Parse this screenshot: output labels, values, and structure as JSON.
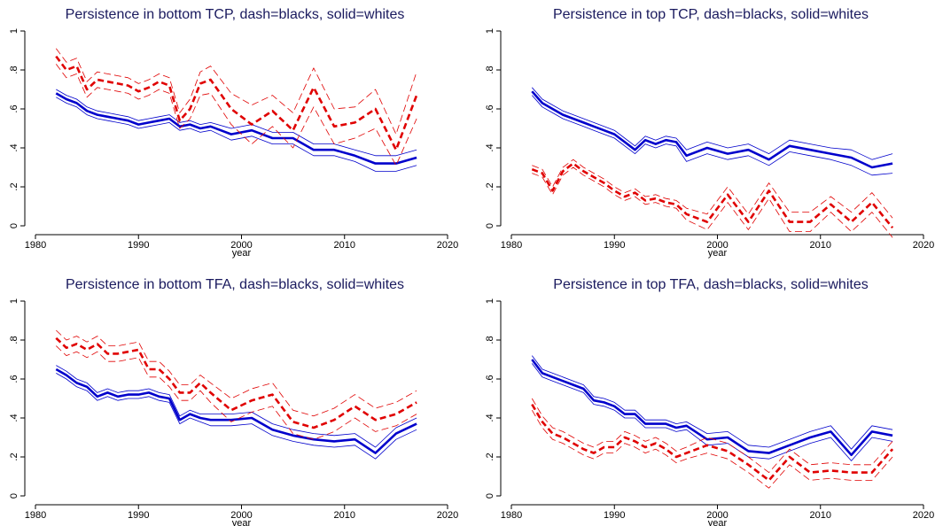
{
  "chart_data": [
    {
      "type": "line",
      "title": "Persistence in bottom TCP, dash=blacks, solid=whites",
      "x_label": "year",
      "x": [
        1982,
        1983,
        1984,
        1985,
        1986,
        1987,
        1988,
        1989,
        1990,
        1991,
        1992,
        1993,
        1994,
        1995,
        1996,
        1997,
        1999,
        2001,
        2003,
        2005,
        2007,
        2009,
        2011,
        2013,
        2015,
        2017
      ],
      "xlim": [
        1980,
        2020
      ],
      "xticks": [
        1980,
        1990,
        2000,
        2010,
        2020
      ],
      "ylim": [
        0,
        1
      ],
      "yticks": [
        0,
        {
          "value": 0.2,
          "label": ".2"
        },
        {
          "value": 0.4,
          "label": ".4"
        },
        {
          "value": 0.6,
          "label": ".6"
        },
        {
          "value": 0.8,
          "label": ".8"
        },
        1
      ],
      "series": [
        {
          "color": "#0000cc",
          "dash": false,
          "values": [
            0.68,
            0.65,
            0.63,
            0.59,
            0.57,
            0.56,
            0.55,
            0.54,
            0.52,
            0.53,
            0.54,
            0.55,
            0.51,
            0.52,
            0.5,
            0.51,
            0.47,
            0.49,
            0.45,
            0.45,
            0.39,
            0.39,
            0.36,
            0.32,
            0.32,
            0.35
          ],
          "lower": [
            0.66,
            0.63,
            0.61,
            0.57,
            0.55,
            0.54,
            0.53,
            0.52,
            0.5,
            0.51,
            0.52,
            0.53,
            0.49,
            0.5,
            0.48,
            0.49,
            0.44,
            0.46,
            0.42,
            0.42,
            0.36,
            0.36,
            0.33,
            0.28,
            0.28,
            0.31
          ],
          "upper": [
            0.7,
            0.67,
            0.65,
            0.61,
            0.59,
            0.58,
            0.57,
            0.56,
            0.54,
            0.55,
            0.56,
            0.57,
            0.53,
            0.54,
            0.52,
            0.53,
            0.5,
            0.52,
            0.48,
            0.48,
            0.42,
            0.42,
            0.39,
            0.36,
            0.36,
            0.39
          ]
        },
        {
          "color": "#e00000",
          "dash": true,
          "values": [
            0.87,
            0.8,
            0.82,
            0.7,
            0.75,
            0.74,
            0.73,
            0.72,
            0.69,
            0.71,
            0.74,
            0.72,
            0.54,
            0.6,
            0.73,
            0.75,
            0.6,
            0.52,
            0.59,
            0.49,
            0.71,
            0.51,
            0.53,
            0.6,
            0.39,
            0.67
          ],
          "lower": [
            0.83,
            0.76,
            0.78,
            0.66,
            0.71,
            0.7,
            0.69,
            0.68,
            0.65,
            0.67,
            0.7,
            0.68,
            0.5,
            0.55,
            0.67,
            0.68,
            0.52,
            0.42,
            0.51,
            0.4,
            0.61,
            0.42,
            0.45,
            0.5,
            0.31,
            0.55
          ],
          "upper": [
            0.91,
            0.84,
            0.86,
            0.74,
            0.79,
            0.78,
            0.77,
            0.76,
            0.73,
            0.75,
            0.78,
            0.76,
            0.58,
            0.65,
            0.79,
            0.82,
            0.68,
            0.62,
            0.67,
            0.58,
            0.81,
            0.6,
            0.61,
            0.7,
            0.47,
            0.79
          ]
        }
      ]
    },
    {
      "type": "line",
      "title": "Persistence in top TCP, dash=blacks, solid=whites",
      "x_label": "year",
      "x": [
        1982,
        1983,
        1984,
        1985,
        1986,
        1987,
        1988,
        1989,
        1990,
        1991,
        1992,
        1993,
        1994,
        1995,
        1996,
        1997,
        1999,
        2001,
        2003,
        2005,
        2007,
        2009,
        2011,
        2013,
        2015,
        2017
      ],
      "xlim": [
        1980,
        2020
      ],
      "xticks": [
        1980,
        1990,
        2000,
        2010,
        2020
      ],
      "ylim": [
        0,
        1
      ],
      "yticks": [
        0,
        {
          "value": 0.2,
          "label": ".2"
        },
        {
          "value": 0.4,
          "label": ".4"
        },
        {
          "value": 0.6,
          "label": ".6"
        },
        {
          "value": 0.8,
          "label": ".8"
        },
        1
      ],
      "series": [
        {
          "color": "#0000cc",
          "dash": false,
          "values": [
            0.69,
            0.63,
            0.6,
            0.57,
            0.55,
            0.53,
            0.51,
            0.49,
            0.47,
            0.43,
            0.39,
            0.44,
            0.42,
            0.44,
            0.43,
            0.36,
            0.4,
            0.37,
            0.39,
            0.34,
            0.41,
            0.39,
            0.37,
            0.35,
            0.3,
            0.32
          ],
          "lower": [
            0.67,
            0.61,
            0.58,
            0.55,
            0.53,
            0.51,
            0.49,
            0.47,
            0.45,
            0.41,
            0.37,
            0.42,
            0.4,
            0.42,
            0.41,
            0.33,
            0.37,
            0.34,
            0.36,
            0.31,
            0.38,
            0.36,
            0.34,
            0.31,
            0.26,
            0.27
          ],
          "upper": [
            0.71,
            0.65,
            0.62,
            0.59,
            0.57,
            0.55,
            0.53,
            0.51,
            0.49,
            0.45,
            0.41,
            0.46,
            0.44,
            0.46,
            0.45,
            0.39,
            0.43,
            0.4,
            0.42,
            0.37,
            0.44,
            0.42,
            0.4,
            0.39,
            0.34,
            0.37
          ]
        },
        {
          "color": "#e00000",
          "dash": true,
          "values": [
            0.29,
            0.27,
            0.18,
            0.28,
            0.32,
            0.28,
            0.25,
            0.22,
            0.18,
            0.15,
            0.17,
            0.13,
            0.14,
            0.12,
            0.11,
            0.06,
            0.02,
            0.16,
            0.02,
            0.18,
            0.02,
            0.02,
            0.11,
            0.02,
            0.12,
            -0.01
          ],
          "lower": [
            0.27,
            0.25,
            0.16,
            0.26,
            0.3,
            0.26,
            0.23,
            0.2,
            0.16,
            0.13,
            0.15,
            0.11,
            0.12,
            0.1,
            0.09,
            0.03,
            -0.02,
            0.12,
            -0.02,
            0.14,
            -0.03,
            -0.03,
            0.07,
            -0.03,
            0.07,
            -0.06
          ],
          "upper": [
            0.31,
            0.29,
            0.2,
            0.3,
            0.34,
            0.3,
            0.27,
            0.24,
            0.2,
            0.17,
            0.19,
            0.15,
            0.16,
            0.14,
            0.13,
            0.09,
            0.06,
            0.2,
            0.06,
            0.22,
            0.07,
            0.07,
            0.15,
            0.07,
            0.17,
            0.04
          ]
        }
      ]
    },
    {
      "type": "line",
      "title": "Persistence in bottom TFA, dash=blacks, solid=whites",
      "x_label": "year",
      "x": [
        1982,
        1983,
        1984,
        1985,
        1986,
        1987,
        1988,
        1989,
        1990,
        1991,
        1992,
        1993,
        1994,
        1995,
        1996,
        1997,
        1999,
        2001,
        2003,
        2005,
        2007,
        2009,
        2011,
        2013,
        2015,
        2017
      ],
      "xlim": [
        1980,
        2020
      ],
      "xticks": [
        1980,
        1990,
        2000,
        2010,
        2020
      ],
      "ylim": [
        0,
        1
      ],
      "yticks": [
        0,
        {
          "value": 0.2,
          "label": ".2"
        },
        {
          "value": 0.4,
          "label": ".4"
        },
        {
          "value": 0.6,
          "label": ".6"
        },
        {
          "value": 0.8,
          "label": ".8"
        },
        1
      ],
      "series": [
        {
          "color": "#0000cc",
          "dash": false,
          "values": [
            0.65,
            0.62,
            0.58,
            0.56,
            0.51,
            0.53,
            0.51,
            0.52,
            0.52,
            0.53,
            0.51,
            0.5,
            0.39,
            0.42,
            0.4,
            0.39,
            0.39,
            0.4,
            0.34,
            0.31,
            0.29,
            0.28,
            0.29,
            0.22,
            0.32,
            0.37
          ],
          "lower": [
            0.63,
            0.6,
            0.56,
            0.54,
            0.49,
            0.51,
            0.49,
            0.5,
            0.5,
            0.51,
            0.49,
            0.48,
            0.37,
            0.4,
            0.38,
            0.36,
            0.36,
            0.37,
            0.31,
            0.28,
            0.26,
            0.25,
            0.26,
            0.19,
            0.29,
            0.34
          ],
          "upper": [
            0.67,
            0.64,
            0.6,
            0.58,
            0.53,
            0.55,
            0.53,
            0.54,
            0.54,
            0.55,
            0.53,
            0.52,
            0.41,
            0.44,
            0.42,
            0.42,
            0.42,
            0.43,
            0.37,
            0.34,
            0.32,
            0.31,
            0.32,
            0.25,
            0.35,
            0.4
          ]
        },
        {
          "color": "#e00000",
          "dash": true,
          "values": [
            0.81,
            0.76,
            0.78,
            0.75,
            0.78,
            0.73,
            0.73,
            0.74,
            0.75,
            0.65,
            0.65,
            0.6,
            0.53,
            0.53,
            0.58,
            0.53,
            0.44,
            0.49,
            0.52,
            0.38,
            0.35,
            0.39,
            0.46,
            0.39,
            0.42,
            0.48
          ],
          "lower": [
            0.77,
            0.72,
            0.74,
            0.71,
            0.74,
            0.69,
            0.69,
            0.7,
            0.71,
            0.61,
            0.61,
            0.56,
            0.49,
            0.49,
            0.54,
            0.48,
            0.38,
            0.43,
            0.46,
            0.32,
            0.29,
            0.33,
            0.4,
            0.33,
            0.36,
            0.42
          ],
          "upper": [
            0.85,
            0.8,
            0.82,
            0.79,
            0.82,
            0.77,
            0.77,
            0.78,
            0.79,
            0.69,
            0.69,
            0.64,
            0.57,
            0.57,
            0.62,
            0.58,
            0.5,
            0.55,
            0.58,
            0.44,
            0.41,
            0.45,
            0.52,
            0.45,
            0.48,
            0.54
          ]
        }
      ]
    },
    {
      "type": "line",
      "title": "Persistence in top TFA, dash=blacks, solid=whites",
      "x_label": "year",
      "x": [
        1982,
        1983,
        1984,
        1985,
        1986,
        1987,
        1988,
        1989,
        1990,
        1991,
        1992,
        1993,
        1994,
        1995,
        1996,
        1997,
        1999,
        2001,
        2003,
        2005,
        2007,
        2009,
        2011,
        2013,
        2015,
        2017
      ],
      "xlim": [
        1980,
        2020
      ],
      "xticks": [
        1980,
        1990,
        2000,
        2010,
        2020
      ],
      "ylim": [
        0,
        1
      ],
      "yticks": [
        0,
        {
          "value": 0.2,
          "label": ".2"
        },
        {
          "value": 0.4,
          "label": ".4"
        },
        {
          "value": 0.6,
          "label": ".6"
        },
        {
          "value": 0.8,
          "label": ".8"
        },
        1
      ],
      "series": [
        {
          "color": "#0000cc",
          "dash": false,
          "values": [
            0.7,
            0.63,
            0.61,
            0.59,
            0.57,
            0.55,
            0.49,
            0.48,
            0.46,
            0.42,
            0.42,
            0.37,
            0.37,
            0.37,
            0.35,
            0.36,
            0.29,
            0.3,
            0.23,
            0.22,
            0.26,
            0.3,
            0.33,
            0.21,
            0.33,
            0.31
          ],
          "lower": [
            0.68,
            0.61,
            0.59,
            0.57,
            0.55,
            0.53,
            0.47,
            0.46,
            0.44,
            0.4,
            0.4,
            0.35,
            0.35,
            0.35,
            0.33,
            0.34,
            0.26,
            0.27,
            0.2,
            0.19,
            0.23,
            0.27,
            0.3,
            0.18,
            0.3,
            0.28
          ],
          "upper": [
            0.72,
            0.65,
            0.63,
            0.61,
            0.59,
            0.57,
            0.51,
            0.5,
            0.48,
            0.44,
            0.44,
            0.39,
            0.39,
            0.39,
            0.37,
            0.38,
            0.32,
            0.33,
            0.26,
            0.25,
            0.29,
            0.33,
            0.36,
            0.24,
            0.36,
            0.34
          ]
        },
        {
          "color": "#e00000",
          "dash": true,
          "values": [
            0.47,
            0.38,
            0.32,
            0.3,
            0.27,
            0.24,
            0.22,
            0.25,
            0.25,
            0.3,
            0.28,
            0.25,
            0.27,
            0.24,
            0.2,
            0.22,
            0.26,
            0.23,
            0.16,
            0.08,
            0.2,
            0.12,
            0.13,
            0.12,
            0.12,
            0.24
          ],
          "lower": [
            0.44,
            0.35,
            0.29,
            0.27,
            0.24,
            0.21,
            0.19,
            0.22,
            0.22,
            0.27,
            0.25,
            0.22,
            0.24,
            0.21,
            0.17,
            0.19,
            0.22,
            0.19,
            0.12,
            0.04,
            0.16,
            0.08,
            0.09,
            0.08,
            0.08,
            0.2
          ],
          "upper": [
            0.5,
            0.41,
            0.35,
            0.33,
            0.3,
            0.27,
            0.25,
            0.28,
            0.28,
            0.33,
            0.31,
            0.28,
            0.3,
            0.27,
            0.23,
            0.25,
            0.3,
            0.27,
            0.2,
            0.12,
            0.24,
            0.16,
            0.17,
            0.16,
            0.16,
            0.28
          ]
        }
      ]
    }
  ]
}
